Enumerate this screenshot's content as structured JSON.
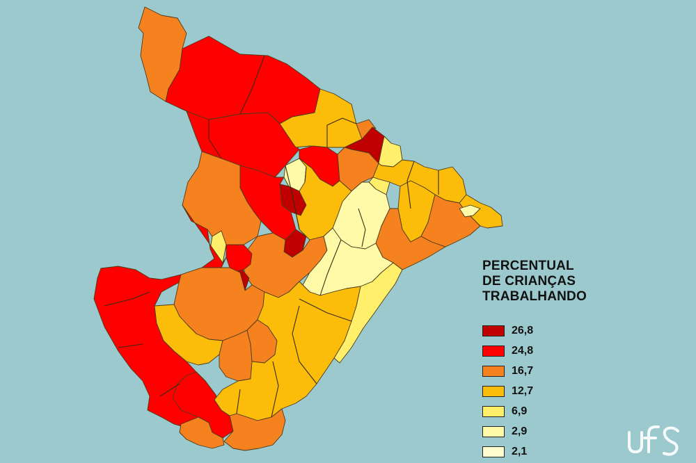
{
  "legend": {
    "title_lines": [
      "PERCENTUAL",
      "DE CRIANÇAS",
      "TRABALHANDO"
    ],
    "items": [
      {
        "label": "26,8",
        "color": "#c00000"
      },
      {
        "label": "24,8",
        "color": "#ff0000"
      },
      {
        "label": "16,7",
        "color": "#f5821f"
      },
      {
        "label": "12,7",
        "color": "#fbbd0a"
      },
      {
        "label": "6,9",
        "color": "#ffef6b"
      },
      {
        "label": "2,9",
        "color": "#fffaa8"
      },
      {
        "label": "2,1",
        "color": "#fffdd0"
      }
    ]
  },
  "map": {
    "class_colors": {
      "c1": "#c00000",
      "c2": "#ff0000",
      "c3": "#f5821f",
      "c4": "#fbbd0a",
      "c5": "#ffef6b",
      "c6": "#fffaa8",
      "c7": "#fffdd0"
    },
    "background": "#9cc9cd",
    "border_color": "#3a2a10"
  },
  "logo": {
    "text": "ufs",
    "icon": "ufs-logo-icon"
  }
}
